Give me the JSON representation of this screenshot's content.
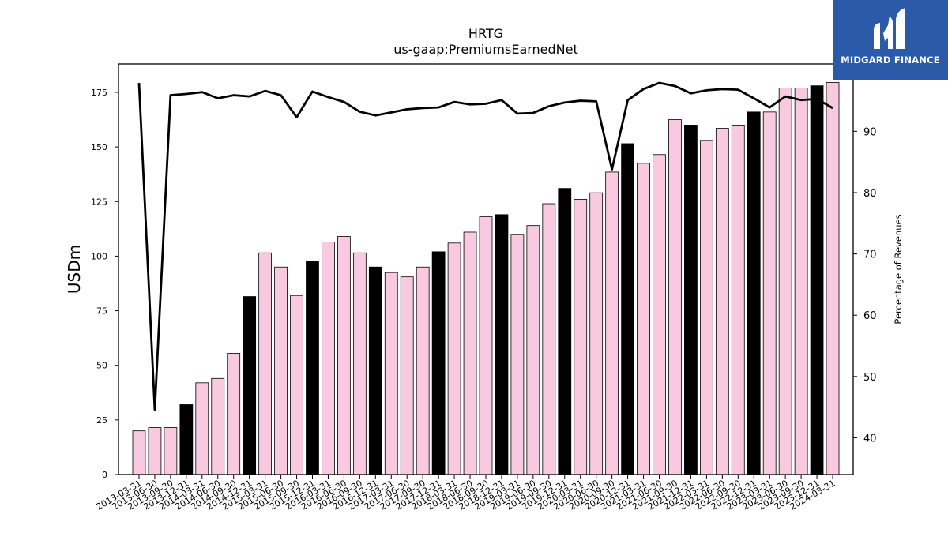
{
  "brand": {
    "name": "MIDGARD FINANCE",
    "color": "#2b5aa8"
  },
  "chart_data": {
    "type": "bar",
    "title": "HRTG",
    "subtitle": "us-gaap:PremiumsEarnedNet",
    "ylabel": "USDm",
    "y2label": "Percentage of Revenues",
    "ylim": [
      0,
      188
    ],
    "y2lim": [
      34,
      101
    ],
    "yticks": [
      0,
      25,
      50,
      75,
      100,
      125,
      150,
      175
    ],
    "y2ticks": [
      40,
      50,
      60,
      70,
      80,
      90
    ],
    "colors": {
      "quarter": "#f9c9e0",
      "year_end": "#000000",
      "line": "#000000"
    },
    "categories": [
      "2013-03-31",
      "2013-06-30",
      "2013-09-30",
      "2013-12-31",
      "2014-03-31",
      "2014-06-30",
      "2014-09-30",
      "2014-12-31",
      "2015-03-31",
      "2015-06-30",
      "2015-09-30",
      "2015-12-31",
      "2016-03-31",
      "2016-06-30",
      "2016-09-30",
      "2016-12-31",
      "2017-03-31",
      "2017-06-30",
      "2017-09-30",
      "2017-12-31",
      "2018-03-31",
      "2018-06-30",
      "2018-09-30",
      "2018-12-31",
      "2019-03-31",
      "2019-06-30",
      "2019-09-30",
      "2019-12-31",
      "2020-03-31",
      "2020-06-30",
      "2020-09-30",
      "2020-12-31",
      "2021-03-31",
      "2021-06-30",
      "2021-09-30",
      "2021-12-31",
      "2022-03-31",
      "2022-06-30",
      "2022-09-30",
      "2022-12-31",
      "2023-03-31",
      "2023-06-30",
      "2023-09-30",
      "2023-12-31",
      "2024-03-31"
    ],
    "series": [
      {
        "kind": "bar",
        "axis": "left",
        "values": [
          20,
          21.5,
          21.5,
          32,
          42,
          44,
          55.5,
          81.5,
          101.5,
          95,
          82,
          97.5,
          106.5,
          109,
          101.5,
          95,
          92.5,
          90.5,
          95,
          102,
          106,
          111,
          118,
          119,
          110,
          114,
          124,
          131,
          126,
          129,
          138.5,
          151.5,
          142.5,
          146.5,
          162.5,
          160,
          153,
          158.5,
          160,
          166,
          166,
          177,
          177,
          178,
          179.5
        ],
        "year_end": [
          false,
          false,
          false,
          true,
          false,
          false,
          false,
          true,
          false,
          false,
          false,
          true,
          false,
          false,
          false,
          true,
          false,
          false,
          false,
          true,
          false,
          false,
          false,
          true,
          false,
          false,
          false,
          true,
          false,
          false,
          false,
          true,
          false,
          false,
          false,
          true,
          false,
          false,
          false,
          true,
          false,
          false,
          false,
          true,
          false
        ]
      },
      {
        "kind": "line",
        "axis": "right",
        "values": [
          97.9,
          44.6,
          95.9,
          96.1,
          96.4,
          95.4,
          95.9,
          95.7,
          96.6,
          95.9,
          92.3,
          96.5,
          95.6,
          94.8,
          93.2,
          92.6,
          93.1,
          93.6,
          93.8,
          93.9,
          94.8,
          94.4,
          94.5,
          95.1,
          92.9,
          93,
          94.1,
          94.7,
          95,
          94.9,
          83.8,
          95.1,
          96.9,
          97.9,
          97.4,
          96.2,
          96.7,
          96.9,
          96.8,
          95.4,
          93.9,
          95.7,
          95.1,
          95.3,
          93.8
        ]
      }
    ]
  }
}
